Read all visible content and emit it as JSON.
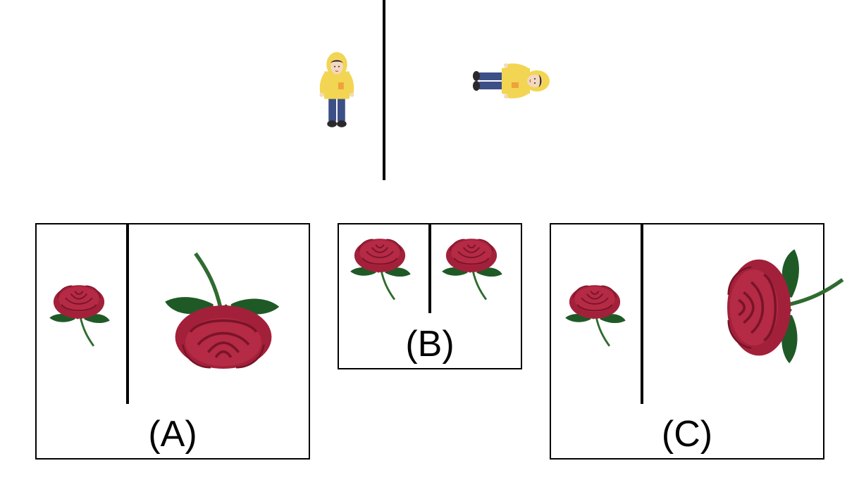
{
  "example": {
    "figure_left": "person-small-upright",
    "figure_right": "person-large-rotated"
  },
  "options": [
    {
      "label": "(A)",
      "left_item": "rose-small-upright",
      "right_item": "rose-large-upside-down"
    },
    {
      "label": "(B)",
      "left_item": "rose-small-upright",
      "right_item": "rose-small-upright"
    },
    {
      "label": "(C)",
      "left_item": "rose-small-upright",
      "right_item": "rose-large-rotated"
    }
  ],
  "colors": {
    "rose_petal": "#a3203a",
    "rose_dark": "#7a1428",
    "leaf": "#1f5a26",
    "stem": "#2f6b2f",
    "raincoat": "#f2d552",
    "jeans": "#3c4f86",
    "skin": "#f3d9c0"
  }
}
